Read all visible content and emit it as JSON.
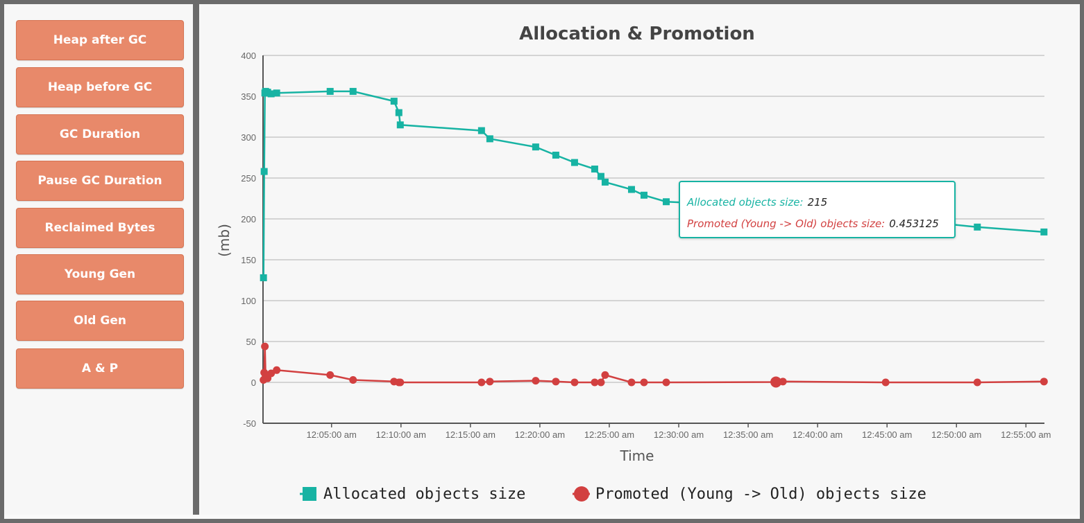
{
  "sidebar": {
    "items": [
      {
        "label": "Heap after GC"
      },
      {
        "label": "Heap before GC"
      },
      {
        "label": "GC Duration"
      },
      {
        "label": "Pause GC Duration"
      },
      {
        "label": "Reclaimed Bytes"
      },
      {
        "label": "Young Gen"
      },
      {
        "label": "Old Gen"
      },
      {
        "label": "A & P"
      }
    ]
  },
  "colors": {
    "button": "#e8896a",
    "allocated": "#17b3a3",
    "promoted": "#d24040",
    "frame": "#6b6b6b"
  },
  "tooltip": {
    "allocated_label": "Allocated objects size:",
    "allocated_value": "215",
    "promoted_label": "Promoted (Young -> Old) objects size:",
    "promoted_value": "0.453125"
  },
  "chart_data": {
    "type": "line",
    "title": "Allocation & Promotion",
    "xlabel": "Time",
    "ylabel": "(mb)",
    "grid": true,
    "legend_position": "bottom",
    "ylim": [
      -50,
      400
    ],
    "yticks": [
      -50,
      0,
      50,
      100,
      150,
      200,
      250,
      300,
      350,
      400
    ],
    "xlim": [
      "12:00:04 am",
      "12:56:20 am"
    ],
    "xticks": [
      "12:05:00 am",
      "12:10:00 am",
      "12:15:00 am",
      "12:20:00 am",
      "12:25:00 am",
      "12:30:00 am",
      "12:35:00 am",
      "12:40:00 am",
      "12:45:00 am",
      "12:50:00 am",
      "12:55:00 am"
    ],
    "series": [
      {
        "name": "Allocated objects size",
        "marker": "square",
        "color": "#17b3a3",
        "points": [
          [
            "12:00:06 am",
            128
          ],
          [
            "12:00:09 am",
            258
          ],
          [
            "12:00:12 am",
            354
          ],
          [
            "12:00:15 am",
            356
          ],
          [
            "12:00:24 am",
            355
          ],
          [
            "12:00:39 am",
            353
          ],
          [
            "12:01:03 am",
            354
          ],
          [
            "12:04:54 am",
            356
          ],
          [
            "12:06:33 am",
            356
          ],
          [
            "12:09:30 am",
            344
          ],
          [
            "12:09:51 am",
            330
          ],
          [
            "12:09:57 am",
            315
          ],
          [
            "12:15:48 am",
            308
          ],
          [
            "12:16:24 am",
            298
          ],
          [
            "12:19:42 am",
            288
          ],
          [
            "12:21:09 am",
            278
          ],
          [
            "12:22:30 am",
            269
          ],
          [
            "12:23:57 am",
            261
          ],
          [
            "12:24:24 am",
            252
          ],
          [
            "12:24:42 am",
            245
          ],
          [
            "12:26:36 am",
            236
          ],
          [
            "12:27:30 am",
            229
          ],
          [
            "12:29:06 am",
            221
          ],
          [
            "12:37:00 am",
            215
          ],
          [
            "12:51:30 am",
            190
          ],
          [
            "12:56:18 am",
            184
          ]
        ]
      },
      {
        "name": "Promoted (Young -> Old) objects size",
        "marker": "circle",
        "color": "#d24040",
        "points": [
          [
            "12:00:06 am",
            3
          ],
          [
            "12:00:09 am",
            12
          ],
          [
            "12:00:12 am",
            44
          ],
          [
            "12:00:15 am",
            8
          ],
          [
            "12:00:24 am",
            5
          ],
          [
            "12:00:39 am",
            11
          ],
          [
            "12:01:03 am",
            15
          ],
          [
            "12:04:54 am",
            9
          ],
          [
            "12:06:33 am",
            3
          ],
          [
            "12:09:30 am",
            1
          ],
          [
            "12:09:51 am",
            0
          ],
          [
            "12:09:57 am",
            0
          ],
          [
            "12:15:48 am",
            0
          ],
          [
            "12:16:24 am",
            1
          ],
          [
            "12:19:42 am",
            2
          ],
          [
            "12:21:09 am",
            1
          ],
          [
            "12:22:30 am",
            0
          ],
          [
            "12:23:57 am",
            0
          ],
          [
            "12:24:24 am",
            0
          ],
          [
            "12:24:42 am",
            9
          ],
          [
            "12:26:36 am",
            0
          ],
          [
            "12:27:30 am",
            0
          ],
          [
            "12:29:06 am",
            0
          ],
          [
            "12:37:00 am",
            0.453125
          ],
          [
            "12:37:30 am",
            1
          ],
          [
            "12:44:54 am",
            0
          ],
          [
            "12:51:30 am",
            0
          ],
          [
            "12:56:18 am",
            1
          ]
        ]
      }
    ]
  }
}
